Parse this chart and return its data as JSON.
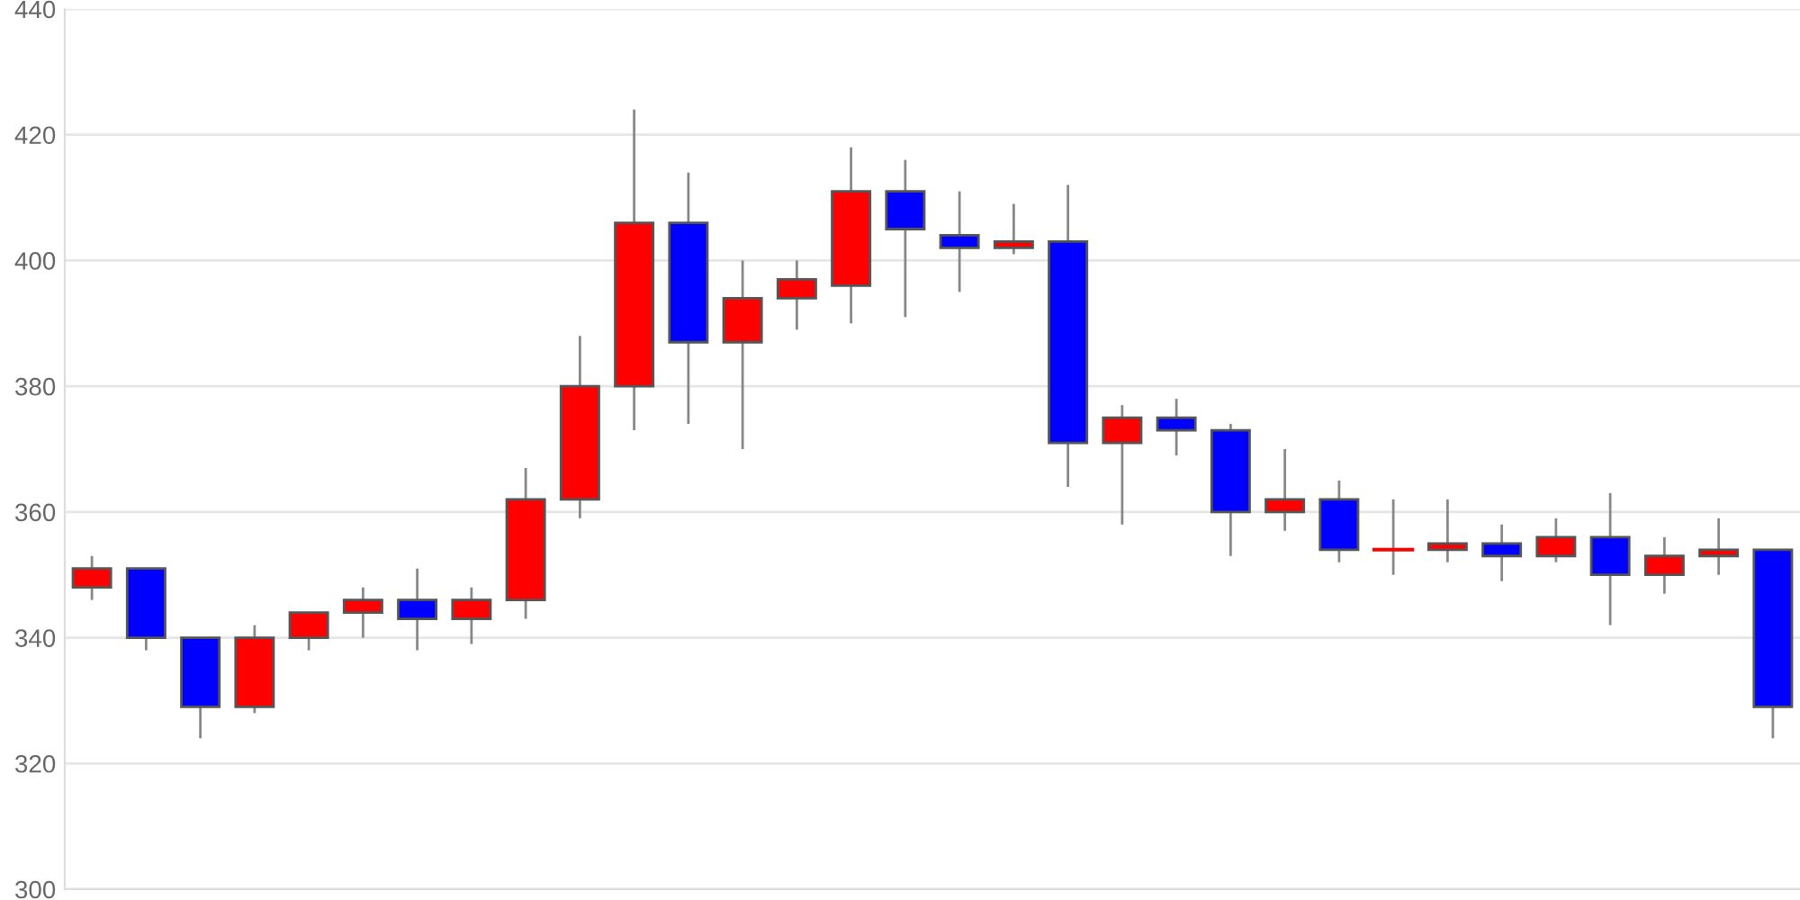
{
  "chart_data": {
    "type": "candlestick",
    "categories": [
      null,
      null,
      null,
      null,
      null,
      null,
      null,
      null,
      null,
      null,
      null,
      null,
      null,
      null,
      null,
      null,
      null,
      null,
      null,
      null,
      null,
      null,
      null,
      null,
      null,
      null,
      null,
      null,
      null,
      null,
      null,
      null
    ],
    "ohlc": [
      [
        348,
        353,
        346,
        351
      ],
      [
        351,
        351,
        338,
        340
      ],
      [
        340,
        340,
        324,
        329
      ],
      [
        329,
        342,
        328,
        340
      ],
      [
        340,
        344,
        338,
        344
      ],
      [
        344,
        348,
        340,
        346
      ],
      [
        346,
        351,
        338,
        343
      ],
      [
        343,
        348,
        339,
        346
      ],
      [
        346,
        367,
        343,
        362
      ],
      [
        362,
        388,
        359,
        380
      ],
      [
        380,
        424,
        373,
        406
      ],
      [
        406,
        414,
        374,
        387
      ],
      [
        387,
        400,
        370,
        394
      ],
      [
        394,
        400,
        389,
        397
      ],
      [
        396,
        418,
        390,
        411
      ],
      [
        411,
        416,
        391,
        405
      ],
      [
        404,
        411,
        395,
        402
      ],
      [
        402,
        409,
        401,
        403
      ],
      [
        403,
        412,
        364,
        371
      ],
      [
        371,
        377,
        358,
        375
      ],
      [
        375,
        378,
        369,
        373
      ],
      [
        373,
        374,
        353,
        360
      ],
      [
        360,
        370,
        357,
        362
      ],
      [
        362,
        365,
        352,
        354
      ],
      [
        354,
        362,
        350,
        354
      ],
      [
        354,
        362,
        352,
        355
      ],
      [
        355,
        358,
        349,
        353
      ],
      [
        353,
        359,
        352,
        356
      ],
      [
        356,
        363,
        342,
        350
      ],
      [
        350,
        356,
        347,
        353
      ],
      [
        353,
        359,
        350,
        354
      ],
      [
        354,
        354,
        324,
        329
      ]
    ],
    "colors": [
      "#ff0000",
      "#0000ff",
      "#0000ff",
      "#ff0000",
      "#ff0000",
      "#ff0000",
      "#0000ff",
      "#ff0000",
      "#ff0000",
      "#ff0000",
      "#ff0000",
      "#0000ff",
      "#ff0000",
      "#ff0000",
      "#ff0000",
      "#0000ff",
      "#0000ff",
      "#ff0000",
      "#0000ff",
      "#ff0000",
      "#0000ff",
      "#0000ff",
      "#ff0000",
      "#0000ff",
      "#ff0000",
      "#ff0000",
      "#0000ff",
      "#ff0000",
      "#0000ff",
      "#ff0000",
      "#ff0000",
      "#0000ff"
    ],
    "ylim": [
      300,
      440
    ],
    "yticks": [
      300,
      320,
      340,
      360,
      380,
      400,
      420,
      440
    ],
    "grid": "y",
    "tick_labels": "y"
  }
}
